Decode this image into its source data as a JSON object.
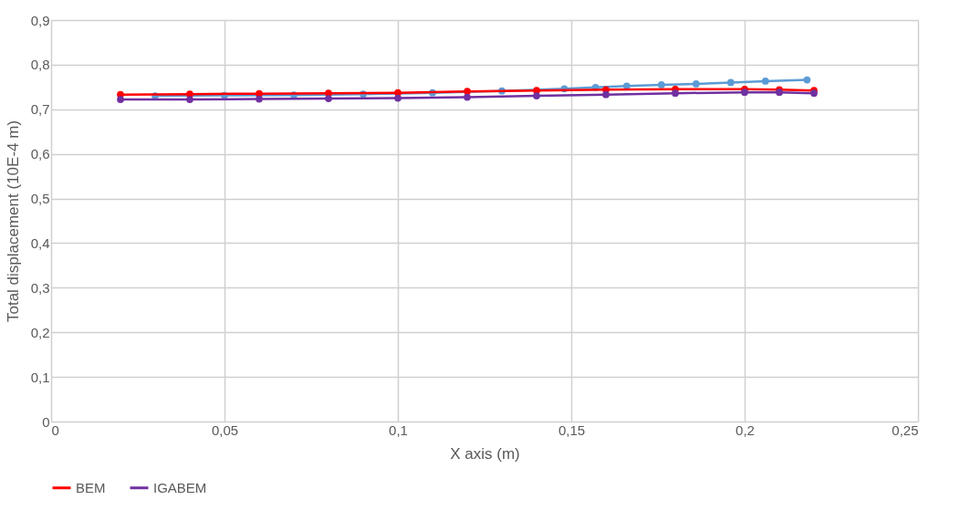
{
  "chart_data": {
    "type": "line",
    "xlabel": "X axis (m)",
    "ylabel": "Total displacement (10E-4 m)",
    "xlim": [
      0,
      0.25
    ],
    "ylim": [
      0,
      0.9
    ],
    "xticks": [
      0,
      {
        "value": 0.05,
        "label": "0,05"
      },
      {
        "value": 0.1,
        "label": "0,1"
      },
      {
        "value": 0.15,
        "label": "0,15"
      },
      {
        "value": 0.2,
        "label": "0,2"
      },
      {
        "value": 0.25,
        "label": "0,25"
      }
    ],
    "yticks": [
      0,
      {
        "value": 0.1,
        "label": "0,1"
      },
      {
        "value": 0.2,
        "label": "0,2"
      },
      {
        "value": 0.3,
        "label": "0,3"
      },
      {
        "value": 0.4,
        "label": "0,4"
      },
      {
        "value": 0.5,
        "label": "0,5"
      },
      {
        "value": 0.6,
        "label": "0,6"
      },
      {
        "value": 0.7,
        "label": "0,7"
      },
      {
        "value": 0.8,
        "label": "0,8"
      },
      {
        "value": 0.9,
        "label": "0,9"
      }
    ],
    "grid": true,
    "legend": "bottom",
    "marker": "circle",
    "line_style": "solid",
    "series": [
      {
        "color": "#5b9bd5",
        "x": [
          0.03,
          0.05,
          0.07,
          0.09,
          0.11,
          0.13,
          0.148,
          0.157,
          0.166,
          0.176,
          0.186,
          0.196,
          0.206,
          0.218
        ],
        "values": [
          0.73,
          0.731,
          0.732,
          0.734,
          0.737,
          0.741,
          0.746,
          0.749,
          0.752,
          0.755,
          0.757,
          0.76,
          0.763,
          0.766
        ]
      },
      {
        "name": "BEM",
        "color": "#ff0000",
        "x": [
          0.02,
          0.04,
          0.06,
          0.08,
          0.1,
          0.12,
          0.14,
          0.16,
          0.18,
          0.2,
          0.21,
          0.22
        ],
        "values": [
          0.733,
          0.734,
          0.735,
          0.736,
          0.737,
          0.74,
          0.742,
          0.744,
          0.745,
          0.745,
          0.744,
          0.742
        ]
      },
      {
        "name": "IGABEM",
        "color": "#7030a0",
        "x": [
          0.02,
          0.04,
          0.06,
          0.08,
          0.1,
          0.12,
          0.14,
          0.16,
          0.18,
          0.2,
          0.21,
          0.22
        ],
        "values": [
          0.722,
          0.722,
          0.723,
          0.724,
          0.725,
          0.727,
          0.73,
          0.733,
          0.736,
          0.738,
          0.738,
          0.736
        ]
      }
    ]
  }
}
